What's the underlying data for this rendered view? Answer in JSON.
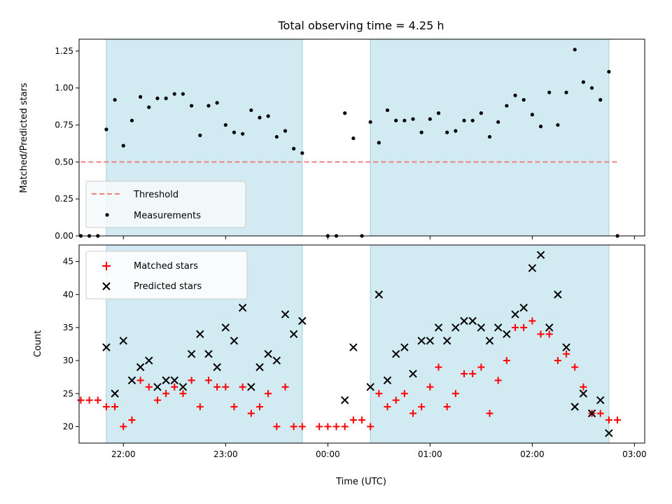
{
  "chart_data": [
    {
      "type": "scatter",
      "title": "Total observing time = 4.25 h",
      "xlabel": "",
      "ylabel": "Matched/Predicted stars",
      "ylim": [
        0,
        1.33
      ],
      "xlim": [
        "21:34",
        "03:06"
      ],
      "yticks": [
        "0.00",
        "0.25",
        "0.50",
        "0.75",
        "1.00",
        "1.25"
      ],
      "ytick_values": [
        0,
        0.25,
        0.5,
        0.75,
        1.0,
        1.25
      ],
      "xticks_values": [
        "22:00",
        "23:00",
        "00:00",
        "01:00",
        "02:00",
        "03:00"
      ],
      "observing_windows": [
        [
          "21:50",
          "23:45"
        ],
        [
          "00:25",
          "02:45"
        ]
      ],
      "legend_position": "lower-left",
      "grid": false,
      "series": [
        {
          "name": "Threshold",
          "color": "#f08080",
          "style": "dashed-line",
          "x": [
            "21:35",
            "02:50"
          ],
          "y": [
            0.5,
            0.5
          ]
        },
        {
          "name": "Measurements",
          "color": "#000000",
          "style": "dot",
          "x": [
            "21:35",
            "21:40",
            "21:45",
            "21:50",
            "21:55",
            "22:00",
            "22:05",
            "22:10",
            "22:15",
            "22:20",
            "22:25",
            "22:30",
            "22:35",
            "22:40",
            "22:45",
            "22:50",
            "22:55",
            "23:00",
            "23:05",
            "23:10",
            "23:15",
            "23:20",
            "23:25",
            "23:30",
            "23:35",
            "23:40",
            "23:45",
            "00:00",
            "00:05",
            "00:10",
            "00:15",
            "00:20",
            "00:25",
            "00:30",
            "00:35",
            "00:40",
            "00:45",
            "00:50",
            "00:55",
            "01:00",
            "01:05",
            "01:10",
            "01:15",
            "01:20",
            "01:25",
            "01:30",
            "01:35",
            "01:40",
            "01:45",
            "01:50",
            "01:55",
            "02:00",
            "02:05",
            "02:10",
            "02:15",
            "02:20",
            "02:25",
            "02:30",
            "02:35",
            "02:40",
            "02:45",
            "02:50"
          ],
          "y": [
            0,
            0,
            0,
            0.72,
            0.92,
            0.61,
            0.78,
            0.94,
            0.87,
            0.93,
            0.93,
            0.96,
            0.96,
            0.88,
            0.68,
            0.88,
            0.9,
            0.75,
            0.7,
            0.69,
            0.85,
            0.8,
            0.81,
            0.67,
            0.71,
            0.59,
            0.56,
            0,
            0,
            0.83,
            0.66,
            0,
            0.77,
            0.63,
            0.85,
            0.78,
            0.78,
            0.79,
            0.7,
            0.79,
            0.83,
            0.7,
            0.71,
            0.78,
            0.78,
            0.83,
            0.67,
            0.77,
            0.88,
            0.95,
            0.92,
            0.82,
            0.74,
            0.97,
            0.75,
            0.97,
            1.26,
            1.04,
            1.0,
            0.92,
            1.11,
            0
          ]
        }
      ]
    },
    {
      "type": "scatter",
      "title": "",
      "xlabel": "Time (UTC)",
      "ylabel": "Count",
      "ylim": [
        17.5,
        47.5
      ],
      "xlim": [
        "21:34",
        "03:06"
      ],
      "yticks": [
        "20",
        "25",
        "30",
        "35",
        "40",
        "45"
      ],
      "ytick_values": [
        20,
        25,
        30,
        35,
        40,
        45
      ],
      "xticks": [
        "22:00",
        "23:00",
        "00:00",
        "01:00",
        "02:00",
        "03:00"
      ],
      "observing_windows": [
        [
          "21:50",
          "23:45"
        ],
        [
          "00:25",
          "02:45"
        ]
      ],
      "legend_position": "upper-left",
      "grid": false,
      "series": [
        {
          "name": "Matched stars",
          "color": "#ff0000",
          "marker": "plus",
          "x": [
            "21:35",
            "21:40",
            "21:45",
            "21:50",
            "21:55",
            "22:00",
            "22:05",
            "22:10",
            "22:15",
            "22:20",
            "22:25",
            "22:30",
            "22:35",
            "22:40",
            "22:45",
            "22:50",
            "22:55",
            "23:00",
            "23:05",
            "23:10",
            "23:15",
            "23:20",
            "23:25",
            "23:30",
            "23:35",
            "23:40",
            "23:45",
            "23:55",
            "24:00",
            "24:05",
            "24:10",
            "24:15",
            "24:20",
            "24:25",
            "24:30",
            "24:35",
            "24:40",
            "24:45",
            "24:50",
            "24:55",
            "25:00",
            "25:05",
            "25:10",
            "25:15",
            "25:20",
            "25:25",
            "25:30",
            "25:35",
            "25:40",
            "25:45",
            "25:50",
            "25:55",
            "26:00",
            "26:05",
            "26:10",
            "26:15",
            "26:20",
            "26:25",
            "26:30",
            "26:35",
            "26:40",
            "26:45",
            "26:50"
          ],
          "y": [
            24,
            24,
            24,
            23,
            23,
            20,
            21,
            27,
            26,
            24,
            25,
            26,
            25,
            27,
            23,
            27,
            26,
            26,
            23,
            26,
            22,
            23,
            25,
            20,
            26,
            20,
            20,
            20,
            20,
            20,
            20,
            21,
            21,
            20,
            25,
            23,
            24,
            25,
            22,
            23,
            26,
            29,
            23,
            25,
            28,
            28,
            29,
            22,
            27,
            30,
            35,
            35,
            36,
            34,
            34,
            30,
            31,
            29,
            26,
            22,
            22,
            21,
            21
          ]
        },
        {
          "name": "Predicted stars",
          "color": "#000000",
          "marker": "x",
          "x": [
            "21:50",
            "21:55",
            "22:00",
            "22:05",
            "22:10",
            "22:15",
            "22:20",
            "22:25",
            "22:30",
            "22:35",
            "22:40",
            "22:45",
            "22:50",
            "22:55",
            "23:00",
            "23:05",
            "23:10",
            "23:15",
            "23:20",
            "23:25",
            "23:30",
            "23:35",
            "23:40",
            "23:45",
            "24:10",
            "24:15",
            "24:25",
            "24:30",
            "24:35",
            "24:40",
            "24:45",
            "24:50",
            "24:55",
            "25:00",
            "25:05",
            "25:10",
            "25:15",
            "25:20",
            "25:25",
            "25:30",
            "25:35",
            "25:40",
            "25:45",
            "25:50",
            "25:55",
            "26:00",
            "26:05",
            "26:10",
            "26:15",
            "26:20",
            "26:25",
            "26:30",
            "26:35",
            "26:40",
            "26:45"
          ],
          "y": [
            32,
            25,
            33,
            27,
            29,
            30,
            26,
            27,
            27,
            26,
            31,
            34,
            31,
            29,
            35,
            33,
            38,
            26,
            29,
            31,
            30,
            37,
            34,
            36,
            24,
            32,
            26,
            40,
            27,
            31,
            32,
            28,
            33,
            33,
            35,
            33,
            35,
            36,
            36,
            35,
            33,
            35,
            34,
            37,
            38,
            44,
            46,
            35,
            40,
            32,
            23,
            25,
            22,
            24,
            19
          ]
        }
      ]
    }
  ]
}
